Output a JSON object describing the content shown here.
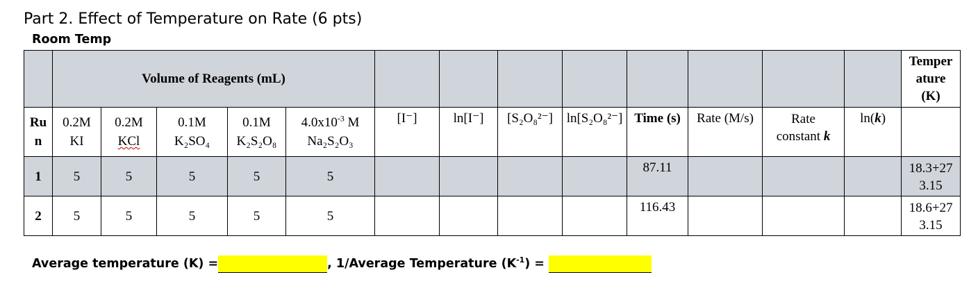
{
  "heading": {
    "title": "Part 2. Effect of Temperature on Rate (6 pts)",
    "subtitle": "Room Temp"
  },
  "table": {
    "group_header": "Volume of Reagents (mL)",
    "temperature_header": [
      "Temper",
      "ature",
      "(K)"
    ],
    "run_header": [
      "Ru",
      "n"
    ],
    "reagents": {
      "ki": [
        "0.2M",
        "KI"
      ],
      "kcl": [
        "0.2M",
        "KCl"
      ],
      "k2so4": {
        "conc": "0.1M",
        "formula": "K₂SO₄"
      },
      "k2s2o8": {
        "conc": "0.1M",
        "formula": "K₂S₂O₈"
      },
      "na2s2o3": {
        "conc_base": "4.0x10",
        "conc_exp": "-3",
        "conc_unit": " M",
        "formula": "Na₂S₂O₃"
      }
    },
    "calc_headers": {
      "iodide_conc": "[I⁻]",
      "ln_iodide": "ln[I⁻]",
      "persulfate_conc": "[S₂O₈²⁻]",
      "ln_persulfate": "ln[S₂O₈²⁻]",
      "time": "Time (s)",
      "rate": "Rate (M/s)",
      "rate_constant": [
        "Rate",
        "constant "
      ],
      "rate_constant_symbol": "k",
      "ln_k_prefix": "ln(",
      "ln_k_symbol": "k",
      "ln_k_suffix": ")"
    },
    "rows": [
      {
        "run": "1",
        "ki": "5",
        "kcl": "5",
        "k2so4": "5",
        "k2s2o8": "5",
        "na2s2o3": "5",
        "time": "87.11",
        "temperature": [
          "18.3+27",
          "3.15"
        ]
      },
      {
        "run": "2",
        "ki": "5",
        "kcl": "5",
        "k2so4": "5",
        "k2s2o8": "5",
        "na2s2o3": "5",
        "time": "116.43",
        "temperature": [
          "18.6+27",
          "3.15"
        ]
      }
    ]
  },
  "footer": {
    "avg_temp_label": "Average temperature (K) =",
    "separator": ", ",
    "inverse_label_prefix": "1/Average Temperature (K",
    "inverse_label_exp": "-1",
    "inverse_label_suffix": ") =",
    "highlight_color": "#ffff00"
  },
  "colors": {
    "header_fill": "#d0d4db",
    "spellcheck_underline": "#c00000"
  }
}
